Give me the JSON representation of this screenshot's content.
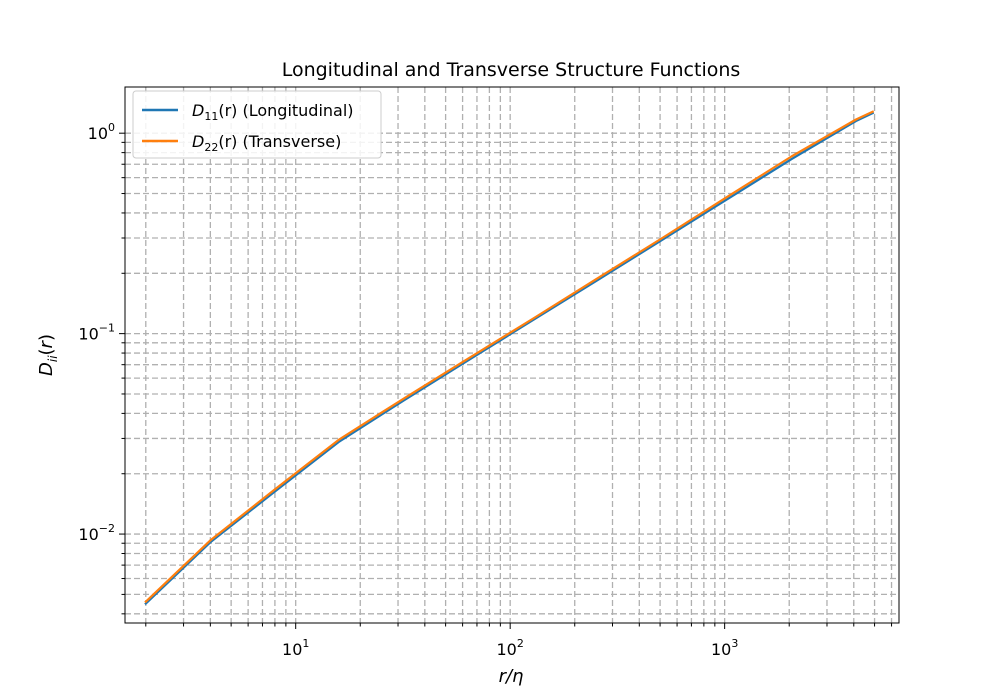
{
  "chart_data": {
    "type": "line",
    "title": "Longitudinal and Transverse Structure Functions",
    "xlabel": "r/η",
    "ylabel": "D_ii(r)",
    "xscale": "log",
    "yscale": "log",
    "xlim": [
      1.6,
      6500
    ],
    "ylim": [
      0.0036,
      1.7
    ],
    "grid": true,
    "legend_position": "upper-left",
    "x_tick_labels": [
      {
        "base": "10",
        "exp": "1",
        "value": 10
      },
      {
        "base": "10",
        "exp": "2",
        "value": 100
      },
      {
        "base": "10",
        "exp": "3",
        "value": 1000
      }
    ],
    "y_tick_labels": [
      {
        "base": "10",
        "exp": "0",
        "value": 1
      },
      {
        "base": "10",
        "exp": "−1",
        "value": 0.1
      },
      {
        "base": "10",
        "exp": "−2",
        "value": 0.01
      }
    ],
    "series": [
      {
        "name": "D11(r) (Longitudinal)",
        "legend_main": "D",
        "legend_sub": "11",
        "legend_rest": "(r) (Longitudinal)",
        "color": "#1f77b4",
        "x": [
          2,
          4,
          8,
          16,
          32,
          64,
          128,
          256,
          512,
          1024,
          2048,
          4096,
          4900
        ],
        "y": [
          0.0045,
          0.0091,
          0.0163,
          0.029,
          0.0465,
          0.0738,
          0.117,
          0.185,
          0.294,
          0.467,
          0.742,
          1.15,
          1.26
        ]
      },
      {
        "name": "D22(r) (Transverse)",
        "legend_main": "D",
        "legend_sub": "22",
        "legend_rest": "(r) (Transverse)",
        "color": "#ff7f0e",
        "x": [
          2,
          4,
          8,
          16,
          32,
          64,
          128,
          256,
          512,
          1024,
          2048,
          4096,
          4900
        ],
        "y": [
          0.0046,
          0.0093,
          0.0167,
          0.0297,
          0.0475,
          0.0753,
          0.119,
          0.189,
          0.3,
          0.48,
          0.765,
          1.17,
          1.28
        ]
      }
    ]
  }
}
